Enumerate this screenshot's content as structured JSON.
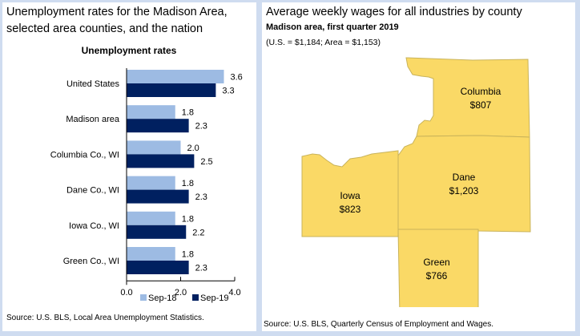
{
  "left": {
    "title_line1": "Unemployment rates for the Madison Area,",
    "title_line2": "selected area counties, and the nation",
    "source": "Source: U.S. BLS, Local Area Unemployment Statistics."
  },
  "right": {
    "title": "Average weekly wages for all industries by county",
    "subtitle": "Madison area, first quarter 2019",
    "note": "(U.S. = $1,184; Area = $1,153)",
    "source": "Source: U.S. BLS, Quarterly Census of Employment and Wages.",
    "map_fill": "#fad966",
    "map_stroke": "#c9b35a",
    "counties": [
      {
        "name": "Columbia",
        "wage": "$807"
      },
      {
        "name": "Dane",
        "wage": "$1,203"
      },
      {
        "name": "Iowa",
        "wage": "$823"
      },
      {
        "name": "Green",
        "wage": "$766"
      }
    ]
  },
  "chart_data": {
    "type": "bar",
    "orientation": "horizontal",
    "title": "Unemployment rates",
    "categories": [
      "United States",
      "Madison area",
      "Columbia Co., WI",
      "Dane Co., WI",
      "Iowa Co., WI",
      "Green Co., WI"
    ],
    "series": [
      {
        "name": "Sep-18",
        "color": "#9dbbe3",
        "values": [
          3.6,
          1.8,
          2.0,
          1.8,
          1.8,
          1.8
        ],
        "labels": [
          "3.6",
          "1.8",
          "2.0",
          "1.8",
          "1.8",
          "1.8"
        ]
      },
      {
        "name": "Sep-19",
        "color": "#002060",
        "values": [
          3.3,
          2.3,
          2.5,
          2.3,
          2.2,
          2.3
        ],
        "labels": [
          "3.3",
          "2.3",
          "2.5",
          "2.3",
          "2.2",
          "2.3"
        ]
      }
    ],
    "xlim": [
      0,
      4
    ],
    "xticks": [
      "0.0",
      "2.0",
      "4.0"
    ],
    "xlabel": "",
    "ylabel": "",
    "grid": false,
    "legend": "bottom-right"
  }
}
